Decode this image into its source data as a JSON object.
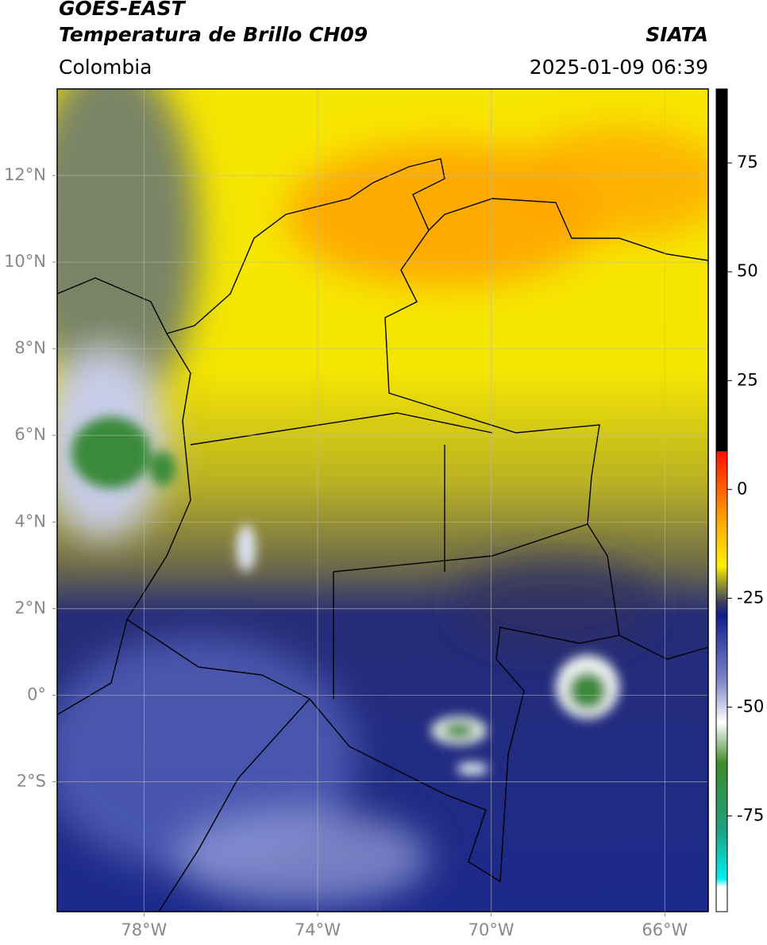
{
  "header": {
    "title": "GOES-EAST",
    "subtitle": "Temperatura de Brillo CH09",
    "region": "Colombia",
    "source": "SIATA",
    "timestamp": "2025-01-09 06:39"
  },
  "map": {
    "lon_range": [
      -80,
      -65
    ],
    "lat_range": [
      -5,
      14
    ],
    "grid": true,
    "lon_ticks": [
      {
        "value": -78,
        "label": "78°W"
      },
      {
        "value": -74,
        "label": "74°W"
      },
      {
        "value": -70,
        "label": "70°W"
      },
      {
        "value": -66,
        "label": "66°W"
      }
    ],
    "lat_ticks": [
      {
        "value": 12,
        "label": "12°N"
      },
      {
        "value": 10,
        "label": "10°N"
      },
      {
        "value": 8,
        "label": "8°N"
      },
      {
        "value": 6,
        "label": "6°N"
      },
      {
        "value": 4,
        "label": "4°N"
      },
      {
        "value": 2,
        "label": "2°N"
      },
      {
        "value": 0,
        "label": "0°"
      },
      {
        "value": -2,
        "label": "2°S"
      }
    ]
  },
  "colorbar": {
    "range": [
      -97,
      92
    ],
    "ticks": [
      75,
      50,
      25,
      0,
      -25,
      -50,
      -75
    ]
  }
}
